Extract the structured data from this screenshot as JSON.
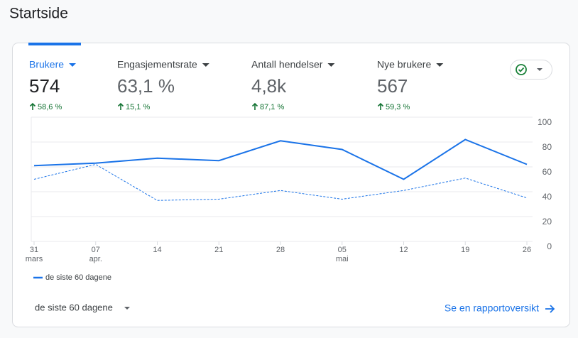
{
  "header": {
    "title": "Startside"
  },
  "metrics": [
    {
      "name": "Brukere",
      "value": "574",
      "change": "58,6 %"
    },
    {
      "name": "Engasjementsrate",
      "value": "63,1 %",
      "change": "15,1 %"
    },
    {
      "name": "Antall hendelser",
      "value": "4,8k",
      "change": "87,1 %"
    },
    {
      "name": "Nye brukere",
      "value": "567",
      "change": "59,3 %"
    }
  ],
  "chart_data": {
    "type": "line",
    "categories": [
      "31",
      "07",
      "14",
      "21",
      "28",
      "05",
      "12",
      "19",
      "26"
    ],
    "category_months": [
      "mars",
      "apr.",
      null,
      null,
      null,
      "mai",
      null,
      null,
      null
    ],
    "series": [
      {
        "name": "de siste 60 dagene",
        "color": "#1a73e8",
        "values": [
          61,
          63,
          67,
          65,
          81,
          74,
          50,
          82,
          62
        ]
      },
      {
        "color": "#1a73e8",
        "dashed": true,
        "values": [
          50,
          62,
          33,
          34,
          41,
          34,
          41,
          51,
          35
        ]
      }
    ],
    "ylim": [
      0,
      100
    ],
    "yticks": [
      0,
      20,
      40,
      60,
      80,
      100
    ],
    "grid": true
  },
  "footer": {
    "period": "de siste 60 dagene",
    "link": "Se en rapportoversikt"
  }
}
